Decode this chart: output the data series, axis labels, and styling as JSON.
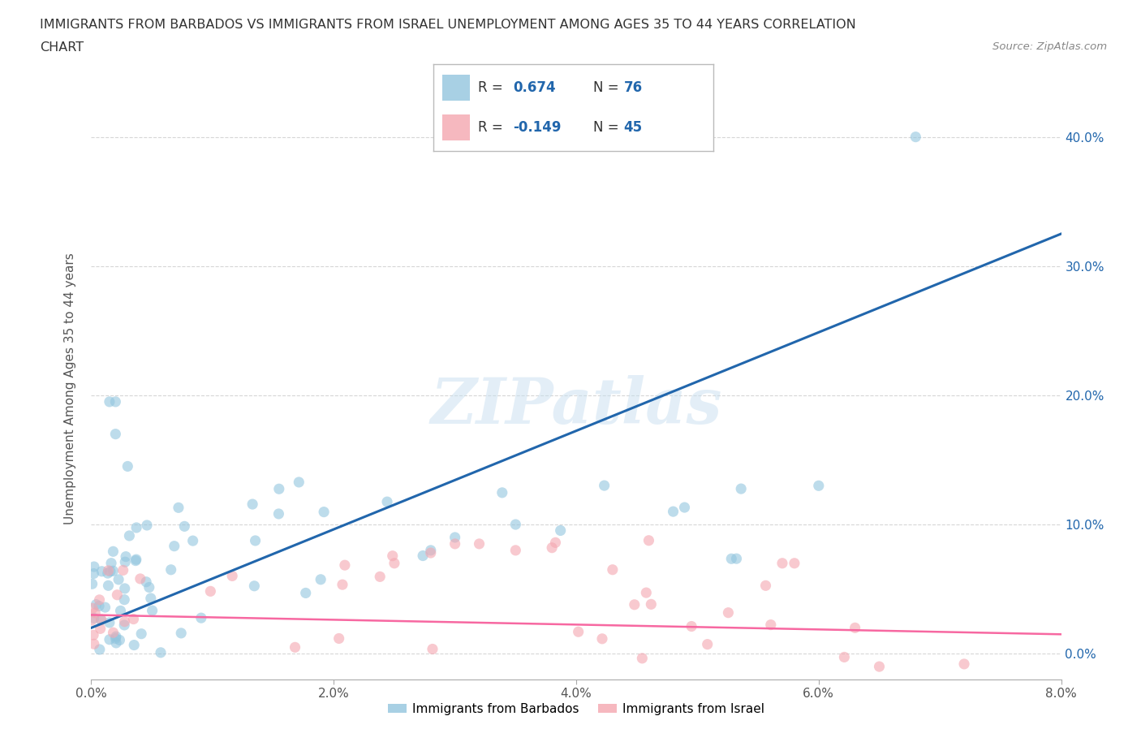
{
  "title_line1": "IMMIGRANTS FROM BARBADOS VS IMMIGRANTS FROM ISRAEL UNEMPLOYMENT AMONG AGES 35 TO 44 YEARS CORRELATION",
  "title_line2": "CHART",
  "source": "Source: ZipAtlas.com",
  "ylabel": "Unemployment Among Ages 35 to 44 years",
  "xlim": [
    0.0,
    0.08
  ],
  "ylim": [
    -0.02,
    0.43
  ],
  "barbados_R": 0.674,
  "barbados_N": 76,
  "israel_R": -0.149,
  "israel_N": 45,
  "barbados_color": "#92c5de",
  "israel_color": "#f4a6b0",
  "barbados_line_color": "#2166ac",
  "israel_line_color": "#f768a1",
  "legend_label_barbados": "Immigrants from Barbados",
  "legend_label_israel": "Immigrants from Israel",
  "watermark": "ZIPatlas",
  "background_color": "#ffffff",
  "grid_color": "#cccccc",
  "x_ticks": [
    0.0,
    0.02,
    0.04,
    0.06,
    0.08
  ],
  "y_ticks": [
    0.0,
    0.1,
    0.2,
    0.3,
    0.4
  ],
  "x_tick_labels": [
    "0.0%",
    "2.0%",
    "4.0%",
    "6.0%",
    "8.0%"
  ],
  "y_tick_labels": [
    "0.0%",
    "10.0%",
    "20.0%",
    "30.0%",
    "40.0%"
  ]
}
